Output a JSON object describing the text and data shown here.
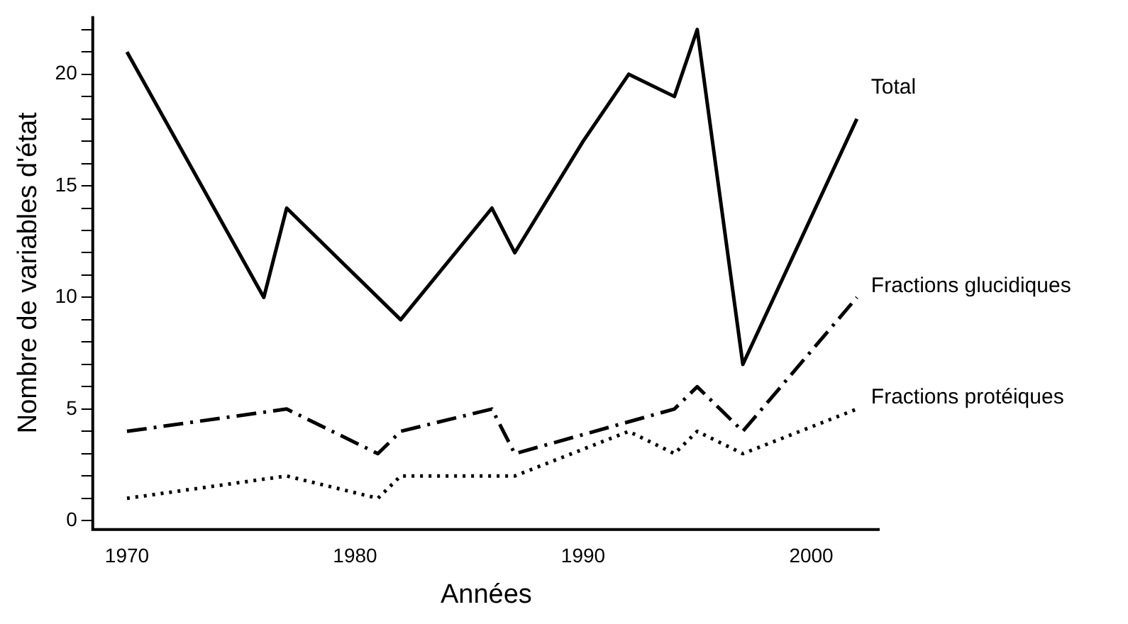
{
  "chart_data": {
    "type": "line",
    "xlabel": "Années",
    "ylabel": "Nombre de variables d'état",
    "xlim": [
      1968.5,
      2003
    ],
    "xticks": [
      1970,
      1980,
      1990,
      2000
    ],
    "ylim": [
      -0.4,
      22.6
    ],
    "yticks": [
      0,
      {
        "value": 1,
        "label": null
      },
      {
        "value": 2,
        "label": null
      },
      {
        "value": 3,
        "label": null
      },
      {
        "value": 4,
        "label": null
      },
      5,
      {
        "value": 6,
        "label": null
      },
      {
        "value": 7,
        "label": null
      },
      {
        "value": 8,
        "label": null
      },
      {
        "value": 9,
        "label": null
      },
      10,
      {
        "value": 11,
        "label": null
      },
      {
        "value": 12,
        "label": null
      },
      {
        "value": 13,
        "label": null
      },
      {
        "value": 14,
        "label": null
      },
      15,
      {
        "value": 16,
        "label": null
      },
      {
        "value": 17,
        "label": null
      },
      {
        "value": 18,
        "label": null
      },
      {
        "value": 19,
        "label": null
      },
      20,
      {
        "value": 21,
        "label": null
      },
      {
        "value": 22,
        "label": null
      }
    ],
    "grid": false,
    "legend": false,
    "marker": "none",
    "series": [
      {
        "name": "Total",
        "color": "#000000",
        "line_style": "solid",
        "x": [
          1970,
          1976,
          1977,
          1982,
          1986,
          1987,
          1990,
          1992,
          1994,
          1995,
          1997,
          2002
        ],
        "values": [
          21,
          10,
          14,
          9,
          14,
          12,
          17,
          20,
          19,
          22,
          7,
          18
        ]
      },
      {
        "name": "Fractions glucidiques",
        "color": "#000000",
        "line_style": "dashdot",
        "x": [
          1970,
          1977,
          1981,
          1982,
          1986,
          1987,
          1994,
          1995,
          1997,
          2002
        ],
        "values": [
          4,
          5,
          3,
          4,
          5,
          3,
          5,
          6,
          4,
          10
        ]
      },
      {
        "name": "Fractions protéiques",
        "color": "#000000",
        "line_style": "dotted",
        "x": [
          1970,
          1977,
          1981,
          1982,
          1987,
          1992,
          1994,
          1995,
          1997,
          2002
        ],
        "values": [
          1,
          2,
          1,
          2,
          2,
          4,
          3,
          4,
          3,
          5
        ]
      }
    ]
  }
}
